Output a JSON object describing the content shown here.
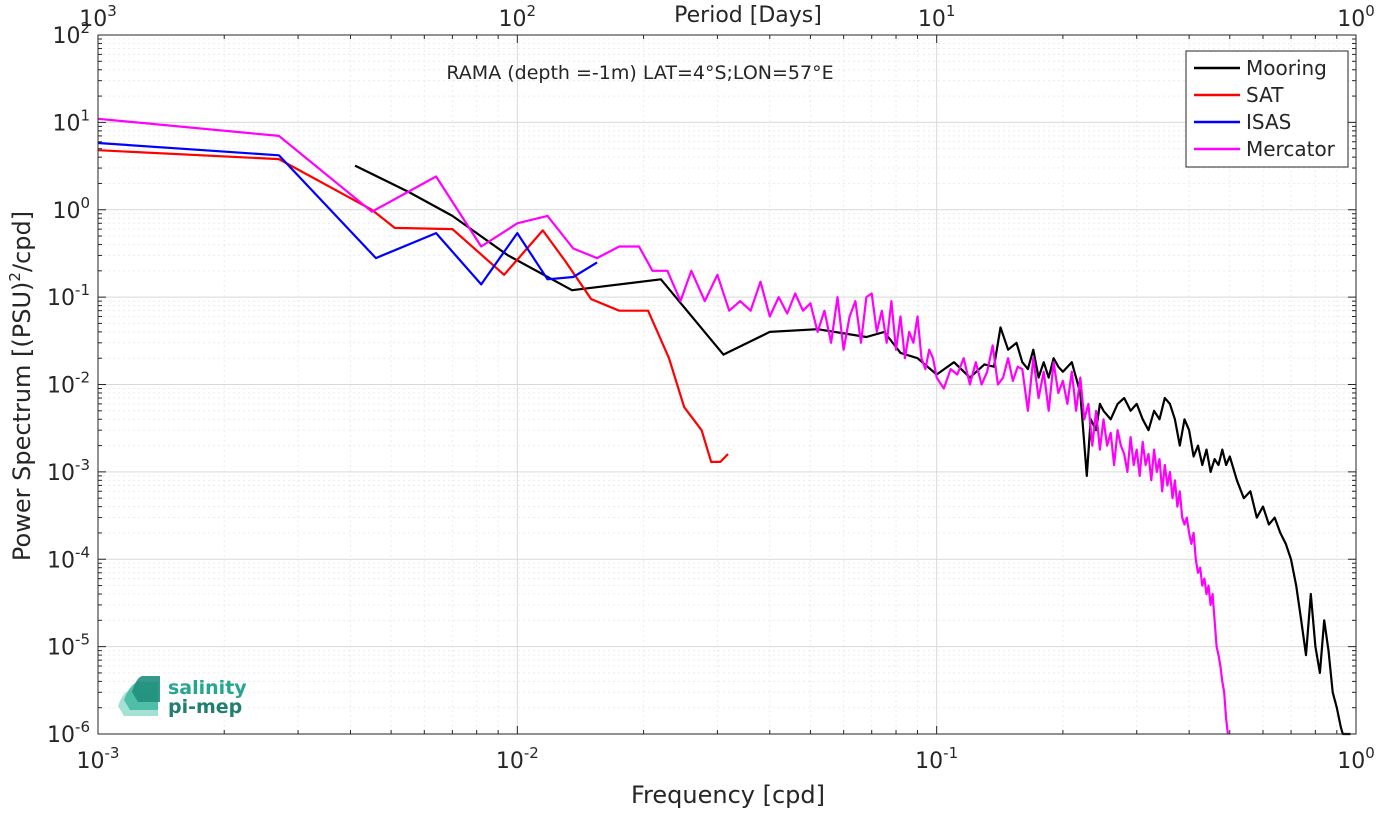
{
  "chart_data": {
    "type": "line",
    "title": "RAMA (depth =-1m) LAT=4°S;LON=57°E",
    "xlabel": "Frequency [cpd]",
    "ylabel_main": "Power Spectrum [(PSU)",
    "ylabel_sup": "2",
    "ylabel_end": "/cpd]",
    "top_xlabel": "Period [Days]",
    "x_scale": "log",
    "y_scale": "log",
    "xlim": [
      0.001,
      1
    ],
    "ylim": [
      1e-06,
      100
    ],
    "grid": true,
    "legend_position": "top-right",
    "x_ticks": [
      {
        "value": 0.001,
        "base": "10",
        "exp": "-3"
      },
      {
        "value": 0.01,
        "base": "10",
        "exp": "-2"
      },
      {
        "value": 0.1,
        "base": "10",
        "exp": "-1"
      },
      {
        "value": 1,
        "base": "10",
        "exp": "0"
      }
    ],
    "top_ticks": [
      {
        "value": 0.001,
        "base": "10",
        "exp": "3"
      },
      {
        "value": 0.01,
        "base": "10",
        "exp": "2"
      },
      {
        "value": 0.1,
        "base": "10",
        "exp": "1"
      },
      {
        "value": 1,
        "base": "10",
        "exp": "0"
      }
    ],
    "y_ticks": [
      {
        "value": 100,
        "base": "10",
        "exp": "2"
      },
      {
        "value": 10,
        "base": "10",
        "exp": "1"
      },
      {
        "value": 1,
        "base": "10",
        "exp": "0"
      },
      {
        "value": 0.1,
        "base": "10",
        "exp": "-1"
      },
      {
        "value": 0.01,
        "base": "10",
        "exp": "-2"
      },
      {
        "value": 0.001,
        "base": "10",
        "exp": "-3"
      },
      {
        "value": 0.0001,
        "base": "10",
        "exp": "-4"
      },
      {
        "value": 1e-05,
        "base": "10",
        "exp": "-5"
      },
      {
        "value": 1e-06,
        "base": "10",
        "exp": "-6"
      }
    ],
    "series": [
      {
        "name": "Mooring",
        "color": "#000000",
        "x": [
          0.0041,
          0.0055,
          0.007,
          0.0095,
          0.0135,
          0.022,
          0.031,
          0.04,
          0.052,
          0.068,
          0.075,
          0.082,
          0.09,
          0.1,
          0.11,
          0.12,
          0.13,
          0.137,
          0.142,
          0.148,
          0.155,
          0.16,
          0.165,
          0.17,
          0.175,
          0.18,
          0.185,
          0.19,
          0.195,
          0.2,
          0.21,
          0.22,
          0.228,
          0.233,
          0.24,
          0.245,
          0.25,
          0.26,
          0.27,
          0.28,
          0.29,
          0.3,
          0.31,
          0.32,
          0.33,
          0.34,
          0.35,
          0.36,
          0.37,
          0.38,
          0.39,
          0.4,
          0.41,
          0.42,
          0.43,
          0.44,
          0.45,
          0.46,
          0.47,
          0.48,
          0.49,
          0.5,
          0.52,
          0.54,
          0.56,
          0.58,
          0.6,
          0.62,
          0.64,
          0.66,
          0.68,
          0.7,
          0.72,
          0.74,
          0.76,
          0.78,
          0.8,
          0.82,
          0.84,
          0.86,
          0.88,
          0.9,
          0.92,
          0.93,
          0.95,
          0.97
        ],
        "y": [
          3.2,
          1.6,
          0.85,
          0.3,
          0.12,
          0.16,
          0.022,
          0.04,
          0.043,
          0.035,
          0.04,
          0.023,
          0.02,
          0.013,
          0.018,
          0.012,
          0.017,
          0.016,
          0.045,
          0.025,
          0.03,
          0.018,
          0.015,
          0.025,
          0.012,
          0.018,
          0.012,
          0.02,
          0.016,
          0.014,
          0.018,
          0.008,
          0.0009,
          0.004,
          0.003,
          0.006,
          0.005,
          0.004,
          0.006,
          0.007,
          0.005,
          0.006,
          0.004,
          0.003,
          0.005,
          0.004,
          0.007,
          0.006,
          0.004,
          0.002,
          0.004,
          0.003,
          0.0015,
          0.002,
          0.0012,
          0.0018,
          0.001,
          0.0014,
          0.0012,
          0.0018,
          0.0012,
          0.0015,
          0.0008,
          0.0005,
          0.0006,
          0.0003,
          0.0004,
          0.00025,
          0.0003,
          0.0002,
          0.00015,
          0.0001,
          5e-05,
          2e-05,
          8e-06,
          4e-05,
          1e-05,
          5e-06,
          2e-05,
          9e-06,
          3e-06,
          2e-06,
          1.2e-06,
          1e-06,
          9e-07,
          8e-07
        ]
      },
      {
        "name": "SAT",
        "color": "#ff0000",
        "x": [
          0.001,
          0.0027,
          0.0045,
          0.0051,
          0.007,
          0.0093,
          0.0115,
          0.013,
          0.015,
          0.0175,
          0.0205,
          0.023,
          0.025,
          0.0275,
          0.029,
          0.0305,
          0.0318
        ],
        "y": [
          4.8,
          3.8,
          1.0,
          0.62,
          0.6,
          0.18,
          0.58,
          0.26,
          0.095,
          0.07,
          0.07,
          0.02,
          0.0055,
          0.003,
          0.0013,
          0.0013,
          0.0016
        ]
      },
      {
        "name": "ISAS",
        "color": "#0000ff",
        "x": [
          0.001,
          0.0027,
          0.0046,
          0.0064,
          0.0082,
          0.01,
          0.0118,
          0.0136,
          0.0155
        ],
        "y": [
          5.8,
          4.2,
          0.28,
          0.54,
          0.14,
          0.54,
          0.16,
          0.17,
          0.25
        ]
      },
      {
        "name": "Mercator",
        "color": "#ff00ff",
        "x": [
          0.001,
          0.0027,
          0.0045,
          0.0064,
          0.0082,
          0.01,
          0.0118,
          0.0136,
          0.0155,
          0.0175,
          0.0195,
          0.021,
          0.0228,
          0.0245,
          0.026,
          0.028,
          0.03,
          0.032,
          0.034,
          0.036,
          0.038,
          0.04,
          0.042,
          0.044,
          0.046,
          0.048,
          0.05,
          0.052,
          0.054,
          0.056,
          0.058,
          0.06,
          0.062,
          0.064,
          0.066,
          0.068,
          0.07,
          0.072,
          0.074,
          0.076,
          0.078,
          0.08,
          0.082,
          0.084,
          0.086,
          0.088,
          0.09,
          0.092,
          0.094,
          0.096,
          0.098,
          0.1,
          0.104,
          0.108,
          0.112,
          0.116,
          0.12,
          0.124,
          0.128,
          0.132,
          0.136,
          0.14,
          0.144,
          0.148,
          0.152,
          0.156,
          0.16,
          0.165,
          0.17,
          0.175,
          0.18,
          0.185,
          0.19,
          0.195,
          0.2,
          0.205,
          0.21,
          0.215,
          0.22,
          0.225,
          0.23,
          0.235,
          0.24,
          0.245,
          0.25,
          0.255,
          0.26,
          0.265,
          0.27,
          0.275,
          0.28,
          0.285,
          0.29,
          0.295,
          0.3,
          0.305,
          0.31,
          0.315,
          0.32,
          0.325,
          0.33,
          0.335,
          0.34,
          0.345,
          0.35,
          0.355,
          0.36,
          0.365,
          0.37,
          0.375,
          0.38,
          0.385,
          0.39,
          0.395,
          0.4,
          0.405,
          0.41,
          0.415,
          0.42,
          0.425,
          0.43,
          0.435,
          0.44,
          0.445,
          0.45,
          0.455,
          0.46,
          0.465,
          0.47,
          0.475,
          0.48,
          0.485,
          0.49,
          0.495
        ],
        "y": [
          11,
          7,
          0.95,
          2.4,
          0.38,
          0.7,
          0.85,
          0.36,
          0.28,
          0.38,
          0.38,
          0.2,
          0.2,
          0.09,
          0.2,
          0.09,
          0.18,
          0.07,
          0.09,
          0.07,
          0.15,
          0.06,
          0.1,
          0.065,
          0.11,
          0.07,
          0.085,
          0.04,
          0.07,
          0.03,
          0.1,
          0.025,
          0.06,
          0.09,
          0.03,
          0.1,
          0.11,
          0.04,
          0.07,
          0.03,
          0.09,
          0.025,
          0.06,
          0.02,
          0.04,
          0.03,
          0.06,
          0.02,
          0.015,
          0.025,
          0.02,
          0.012,
          0.009,
          0.015,
          0.013,
          0.02,
          0.01,
          0.018,
          0.01,
          0.014,
          0.028,
          0.01,
          0.012,
          0.02,
          0.011,
          0.016,
          0.015,
          0.005,
          0.02,
          0.007,
          0.014,
          0.005,
          0.018,
          0.008,
          0.011,
          0.006,
          0.014,
          0.005,
          0.012,
          0.004,
          0.006,
          0.002,
          0.005,
          0.0018,
          0.004,
          0.002,
          0.0028,
          0.0012,
          0.003,
          0.002,
          0.0016,
          0.001,
          0.0025,
          0.0012,
          0.0018,
          0.0009,
          0.0022,
          0.0012,
          0.0016,
          0.0008,
          0.0018,
          0.001,
          0.0014,
          0.0006,
          0.0012,
          0.0007,
          0.001,
          0.0005,
          0.0008,
          0.0004,
          0.0006,
          0.0003,
          0.00025,
          0.0003,
          0.0002,
          0.00015,
          0.0002,
          0.0001,
          7e-05,
          8e-05,
          5e-05,
          6e-05,
          4e-05,
          5e-05,
          3e-05,
          4e-05,
          2e-05,
          1e-05,
          8e-06,
          6e-06,
          4e-06,
          3e-06,
          1.5e-06,
          1e-06
        ]
      }
    ]
  },
  "logo": {
    "line1": "salinity",
    "line2": "pi-mep"
  }
}
